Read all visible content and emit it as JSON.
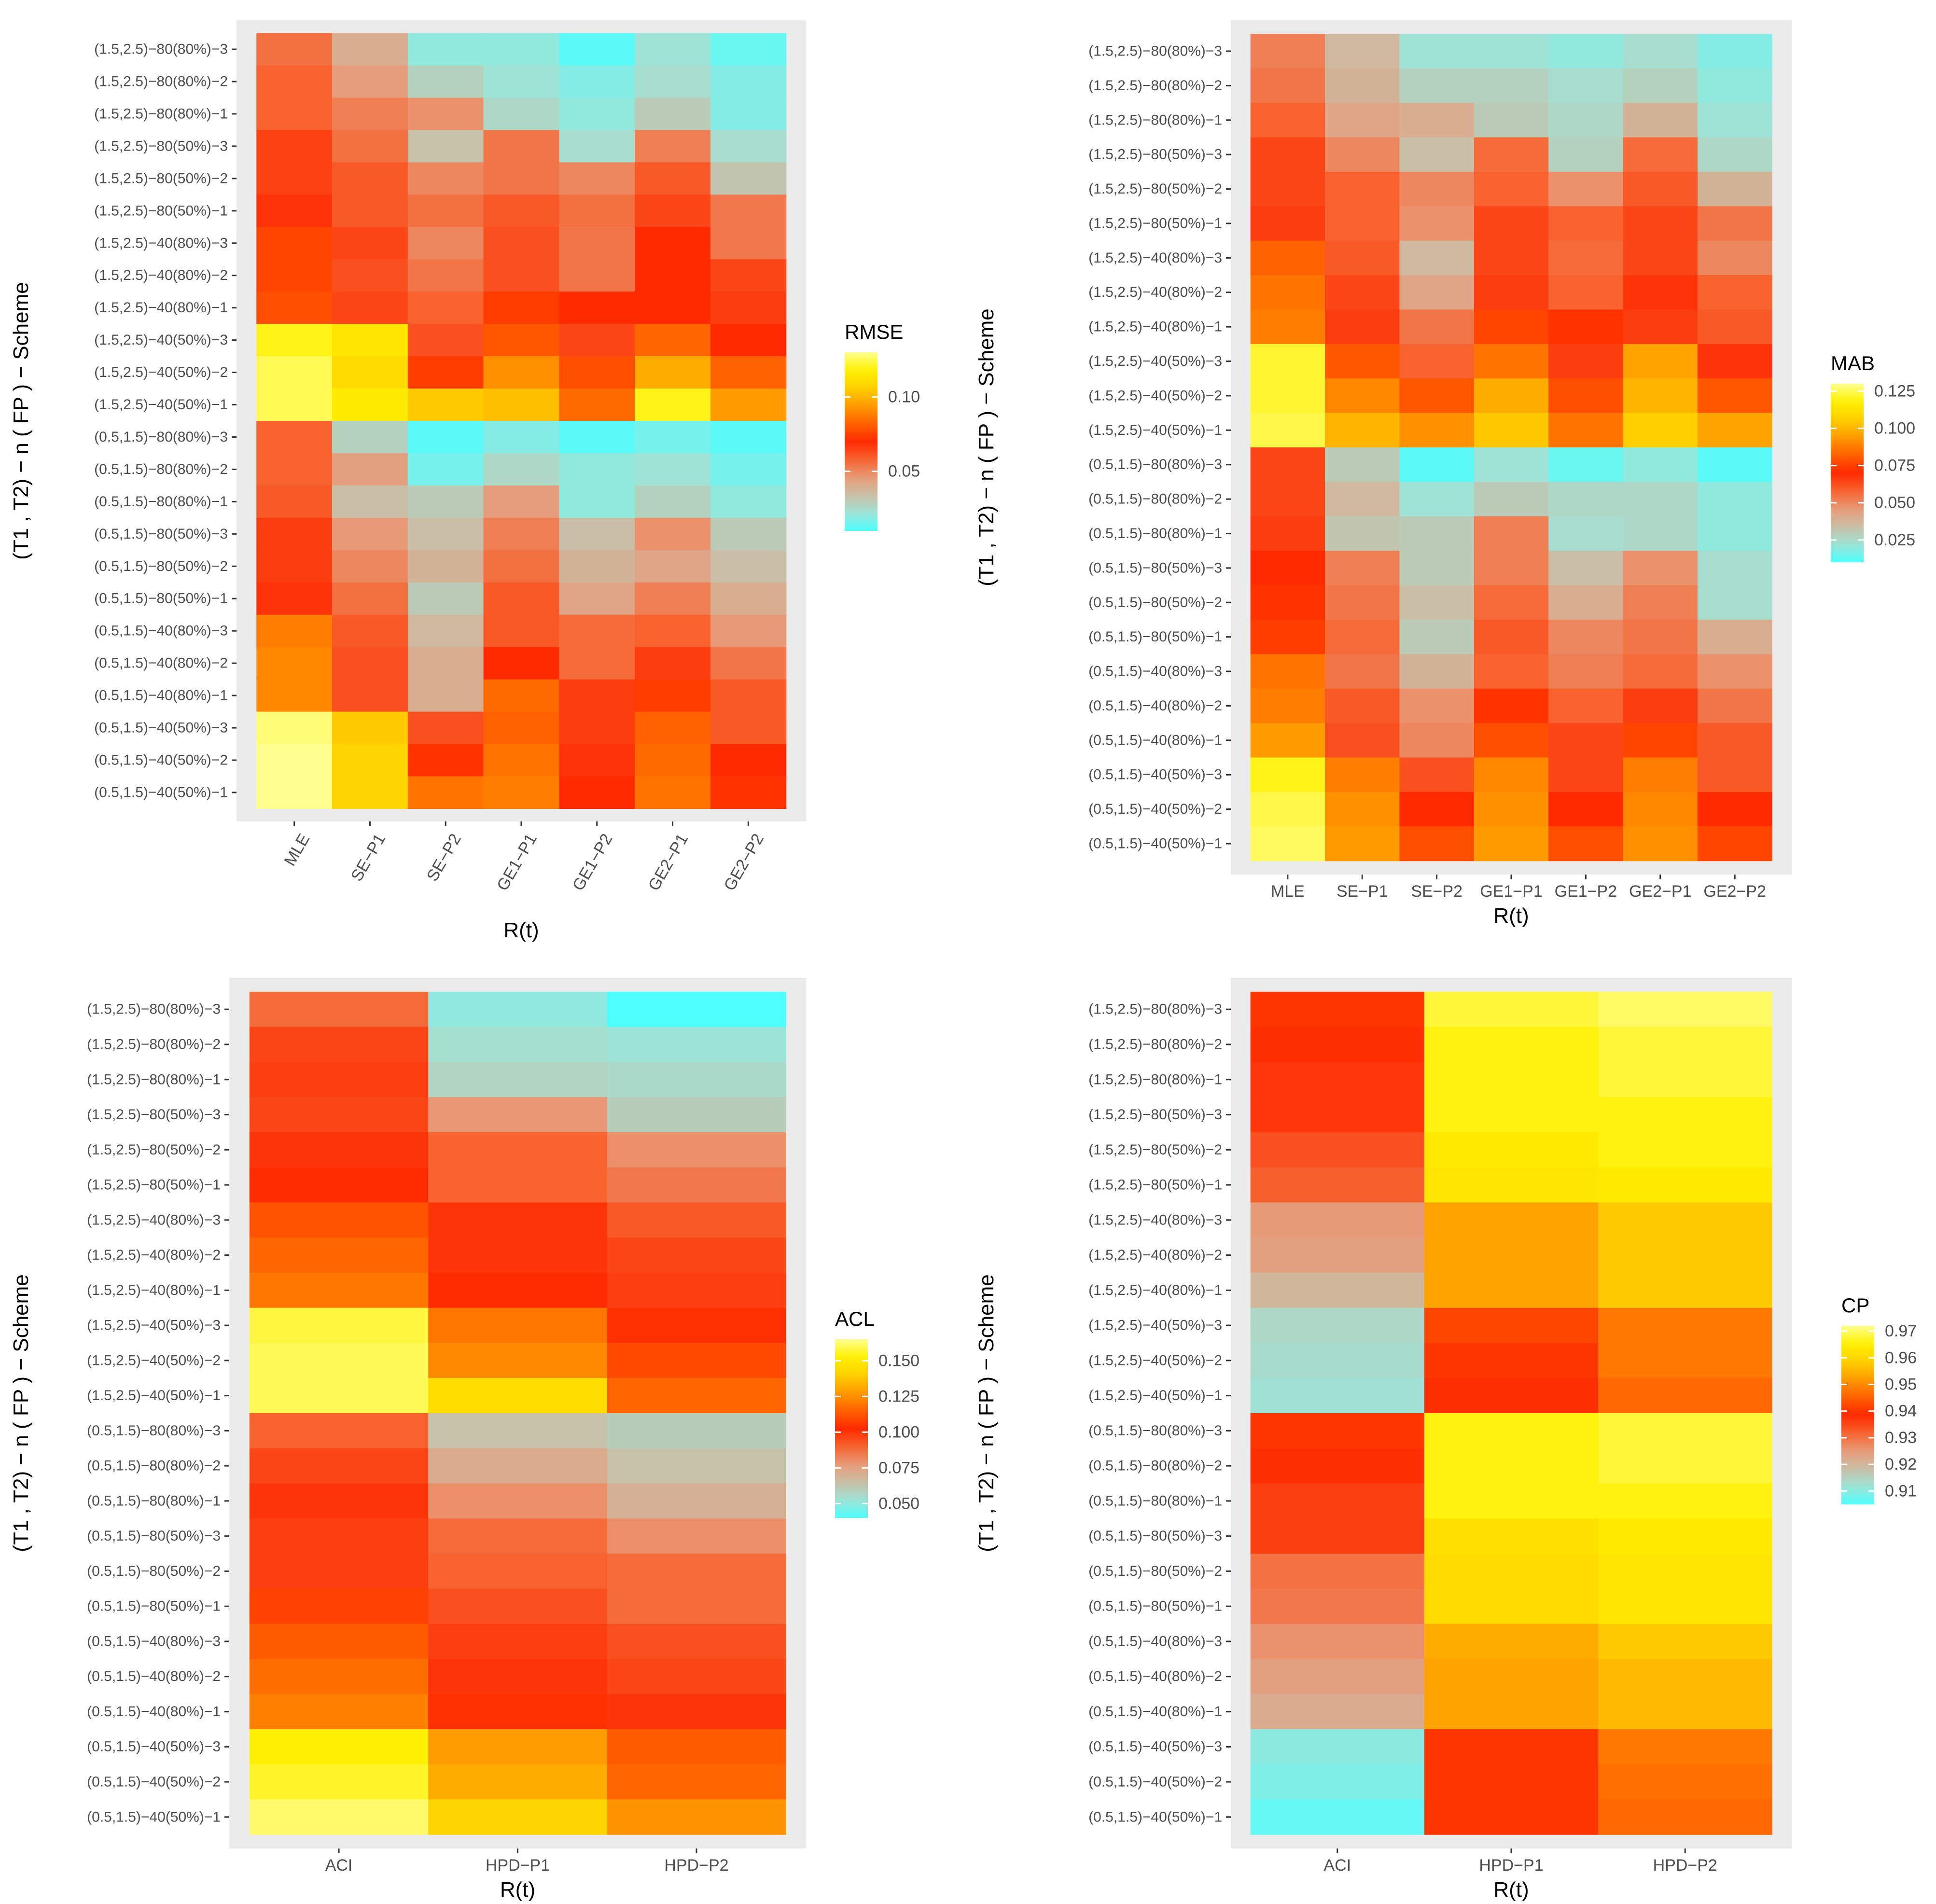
{
  "panels": [
    {
      "id": "rmse",
      "chart_data": {
        "type": "heatmap",
        "xlabel": "R(t)",
        "ylabel": "(T1 , T2) − n ( FP ) − Scheme",
        "x_tick_rotation": 60,
        "columns": [
          "MLE",
          "SE−P1",
          "SE−P2",
          "GE1−P1",
          "GE1−P2",
          "GE2−P1",
          "GE2−P2"
        ],
        "rows": [
          "(1.5,2.5)−80(80%)−3",
          "(1.5,2.5)−80(80%)−2",
          "(1.5,2.5)−80(80%)−1",
          "(1.5,2.5)−80(50%)−3",
          "(1.5,2.5)−80(50%)−2",
          "(1.5,2.5)−80(50%)−1",
          "(1.5,2.5)−40(80%)−3",
          "(1.5,2.5)−40(80%)−2",
          "(1.5,2.5)−40(80%)−1",
          "(1.5,2.5)−40(50%)−3",
          "(1.5,2.5)−40(50%)−2",
          "(1.5,2.5)−40(50%)−1",
          "(0.5,1.5)−80(80%)−3",
          "(0.5,1.5)−80(80%)−2",
          "(0.5,1.5)−80(80%)−1",
          "(0.5,1.5)−80(50%)−3",
          "(0.5,1.5)−80(50%)−2",
          "(0.5,1.5)−80(50%)−1",
          "(0.5,1.5)−40(80%)−3",
          "(0.5,1.5)−40(80%)−2",
          "(0.5,1.5)−40(80%)−1",
          "(0.5,1.5)−40(50%)−3",
          "(0.5,1.5)−40(50%)−2",
          "(0.5,1.5)−40(50%)−1"
        ],
        "values": [
          [
            0.055,
            0.04,
            0.02,
            0.02,
            0.012,
            0.022,
            0.014
          ],
          [
            0.058,
            0.045,
            0.028,
            0.022,
            0.018,
            0.024,
            0.018
          ],
          [
            0.058,
            0.052,
            0.048,
            0.026,
            0.02,
            0.03,
            0.018
          ],
          [
            0.065,
            0.055,
            0.033,
            0.054,
            0.024,
            0.052,
            0.024
          ],
          [
            0.065,
            0.06,
            0.05,
            0.054,
            0.05,
            0.06,
            0.032
          ],
          [
            0.068,
            0.06,
            0.055,
            0.06,
            0.055,
            0.064,
            0.053
          ],
          [
            0.076,
            0.064,
            0.05,
            0.062,
            0.054,
            0.07,
            0.053
          ],
          [
            0.076,
            0.062,
            0.054,
            0.062,
            0.054,
            0.07,
            0.064
          ],
          [
            0.078,
            0.064,
            0.058,
            0.074,
            0.07,
            0.07,
            0.066
          ],
          [
            0.12,
            0.114,
            0.062,
            0.08,
            0.064,
            0.083,
            0.07
          ],
          [
            0.125,
            0.11,
            0.074,
            0.092,
            0.078,
            0.098,
            0.082
          ],
          [
            0.125,
            0.116,
            0.105,
            0.102,
            0.084,
            0.12,
            0.094
          ],
          [
            0.058,
            0.028,
            0.012,
            0.018,
            0.012,
            0.016,
            0.012
          ],
          [
            0.058,
            0.044,
            0.016,
            0.026,
            0.02,
            0.022,
            0.016
          ],
          [
            0.06,
            0.034,
            0.03,
            0.045,
            0.02,
            0.028,
            0.02
          ],
          [
            0.066,
            0.046,
            0.034,
            0.052,
            0.034,
            0.048,
            0.03
          ],
          [
            0.066,
            0.05,
            0.038,
            0.055,
            0.038,
            0.042,
            0.034
          ],
          [
            0.068,
            0.055,
            0.03,
            0.06,
            0.042,
            0.052,
            0.04
          ],
          [
            0.088,
            0.06,
            0.036,
            0.06,
            0.056,
            0.058,
            0.046
          ],
          [
            0.09,
            0.062,
            0.04,
            0.07,
            0.056,
            0.066,
            0.054
          ],
          [
            0.09,
            0.062,
            0.04,
            0.084,
            0.066,
            0.074,
            0.06
          ],
          [
            0.128,
            0.105,
            0.062,
            0.082,
            0.066,
            0.082,
            0.06
          ],
          [
            0.13,
            0.108,
            0.072,
            0.086,
            0.068,
            0.084,
            0.07
          ],
          [
            0.13,
            0.108,
            0.086,
            0.088,
            0.07,
            0.086,
            0.072
          ]
        ],
        "legend": {
          "title": "RMSE",
          "min": 0.01,
          "max": 0.13,
          "ticks": [
            0.05,
            0.1
          ],
          "tick_labels": [
            "0.05",
            "0.10"
          ],
          "placement": "right"
        }
      }
    },
    {
      "id": "mab",
      "chart_data": {
        "type": "heatmap",
        "xlabel": "R(t)",
        "ylabel": "(T1 , T2) − n ( FP ) − Scheme",
        "x_tick_rotation": 0,
        "columns": [
          "MLE",
          "SE−P1",
          "SE−P2",
          "GE1−P1",
          "GE1−P2",
          "GE2−P1",
          "GE2−P2"
        ],
        "rows": [
          "(1.5,2.5)−80(80%)−3",
          "(1.5,2.5)−80(80%)−2",
          "(1.5,2.5)−80(80%)−1",
          "(1.5,2.5)−80(50%)−3",
          "(1.5,2.5)−80(50%)−2",
          "(1.5,2.5)−80(50%)−1",
          "(1.5,2.5)−40(80%)−3",
          "(1.5,2.5)−40(80%)−2",
          "(1.5,2.5)−40(80%)−1",
          "(1.5,2.5)−40(50%)−3",
          "(1.5,2.5)−40(50%)−2",
          "(1.5,2.5)−40(50%)−1",
          "(0.5,1.5)−80(80%)−3",
          "(0.5,1.5)−80(80%)−2",
          "(0.5,1.5)−80(80%)−1",
          "(0.5,1.5)−80(50%)−3",
          "(0.5,1.5)−80(50%)−2",
          "(0.5,1.5)−80(50%)−1",
          "(0.5,1.5)−40(80%)−3",
          "(0.5,1.5)−40(80%)−2",
          "(0.5,1.5)−40(80%)−1",
          "(0.5,1.5)−40(50%)−3",
          "(0.5,1.5)−40(50%)−2",
          "(0.5,1.5)−40(50%)−1"
        ],
        "values": [
          [
            0.052,
            0.036,
            0.022,
            0.022,
            0.02,
            0.024,
            0.018
          ],
          [
            0.054,
            0.038,
            0.028,
            0.028,
            0.024,
            0.028,
            0.02
          ],
          [
            0.058,
            0.042,
            0.04,
            0.03,
            0.026,
            0.038,
            0.022
          ],
          [
            0.064,
            0.05,
            0.034,
            0.056,
            0.028,
            0.056,
            0.026
          ],
          [
            0.064,
            0.058,
            0.05,
            0.058,
            0.048,
            0.06,
            0.038
          ],
          [
            0.066,
            0.058,
            0.048,
            0.064,
            0.058,
            0.064,
            0.054
          ],
          [
            0.082,
            0.06,
            0.036,
            0.064,
            0.056,
            0.064,
            0.05
          ],
          [
            0.086,
            0.064,
            0.042,
            0.066,
            0.058,
            0.068,
            0.058
          ],
          [
            0.088,
            0.066,
            0.054,
            0.076,
            0.072,
            0.066,
            0.06
          ],
          [
            0.122,
            0.08,
            0.058,
            0.086,
            0.066,
            0.096,
            0.068
          ],
          [
            0.122,
            0.09,
            0.08,
            0.098,
            0.078,
            0.1,
            0.08
          ],
          [
            0.124,
            0.1,
            0.092,
            0.104,
            0.086,
            0.106,
            0.096
          ],
          [
            0.064,
            0.03,
            0.012,
            0.022,
            0.014,
            0.02,
            0.012
          ],
          [
            0.064,
            0.036,
            0.022,
            0.03,
            0.026,
            0.026,
            0.02
          ],
          [
            0.066,
            0.032,
            0.03,
            0.052,
            0.024,
            0.026,
            0.02
          ],
          [
            0.07,
            0.052,
            0.03,
            0.052,
            0.034,
            0.048,
            0.024
          ],
          [
            0.072,
            0.054,
            0.034,
            0.056,
            0.04,
            0.052,
            0.024
          ],
          [
            0.074,
            0.056,
            0.03,
            0.06,
            0.05,
            0.054,
            0.04
          ],
          [
            0.086,
            0.054,
            0.038,
            0.058,
            0.052,
            0.056,
            0.048
          ],
          [
            0.088,
            0.06,
            0.048,
            0.072,
            0.058,
            0.066,
            0.054
          ],
          [
            0.094,
            0.062,
            0.05,
            0.078,
            0.064,
            0.076,
            0.06
          ],
          [
            0.12,
            0.088,
            0.062,
            0.09,
            0.064,
            0.088,
            0.06
          ],
          [
            0.124,
            0.092,
            0.07,
            0.092,
            0.07,
            0.09,
            0.07
          ],
          [
            0.126,
            0.094,
            0.078,
            0.094,
            0.078,
            0.092,
            0.076
          ]
        ],
        "legend": {
          "title": "MAB",
          "min": 0.01,
          "max": 0.13,
          "ticks": [
            0.025,
            0.05,
            0.075,
            0.1,
            0.125
          ],
          "tick_labels": [
            "0.025",
            "0.050",
            "0.075",
            "0.100",
            "0.125"
          ],
          "placement": "right"
        }
      }
    },
    {
      "id": "acl",
      "chart_data": {
        "type": "heatmap",
        "xlabel": "R(t)",
        "ylabel": "(T1 , T2) − n ( FP ) − Scheme",
        "x_tick_rotation": 0,
        "columns": [
          "ACI",
          "HPD−P1",
          "HPD−P2"
        ],
        "rows": [
          "(1.5,2.5)−80(80%)−3",
          "(1.5,2.5)−80(80%)−2",
          "(1.5,2.5)−80(80%)−1",
          "(1.5,2.5)−80(50%)−3",
          "(1.5,2.5)−80(50%)−2",
          "(1.5,2.5)−80(50%)−1",
          "(1.5,2.5)−40(80%)−3",
          "(1.5,2.5)−40(80%)−2",
          "(1.5,2.5)−40(80%)−1",
          "(1.5,2.5)−40(50%)−3",
          "(1.5,2.5)−40(50%)−2",
          "(1.5,2.5)−40(50%)−1",
          "(0.5,1.5)−80(80%)−3",
          "(0.5,1.5)−80(80%)−2",
          "(0.5,1.5)−80(80%)−1",
          "(0.5,1.5)−80(50%)−3",
          "(0.5,1.5)−80(50%)−2",
          "(0.5,1.5)−80(50%)−1",
          "(0.5,1.5)−40(80%)−3",
          "(0.5,1.5)−40(80%)−2",
          "(0.5,1.5)−40(80%)−1",
          "(0.5,1.5)−40(50%)−3",
          "(0.5,1.5)−40(50%)−2",
          "(0.5,1.5)−40(50%)−1"
        ],
        "values": [
          [
            0.088,
            0.05,
            0.04
          ],
          [
            0.096,
            0.054,
            0.052
          ],
          [
            0.098,
            0.058,
            0.056
          ],
          [
            0.096,
            0.078,
            0.06
          ],
          [
            0.1,
            0.09,
            0.08
          ],
          [
            0.102,
            0.09,
            0.085
          ],
          [
            0.112,
            0.1,
            0.092
          ],
          [
            0.116,
            0.1,
            0.096
          ],
          [
            0.12,
            0.102,
            0.098
          ],
          [
            0.158,
            0.12,
            0.104
          ],
          [
            0.16,
            0.124,
            0.11
          ],
          [
            0.16,
            0.146,
            0.116
          ],
          [
            0.09,
            0.064,
            0.06
          ],
          [
            0.096,
            0.072,
            0.064
          ],
          [
            0.1,
            0.08,
            0.07
          ],
          [
            0.098,
            0.088,
            0.08
          ],
          [
            0.098,
            0.09,
            0.088
          ],
          [
            0.108,
            0.094,
            0.088
          ],
          [
            0.114,
            0.098,
            0.094
          ],
          [
            0.118,
            0.1,
            0.096
          ],
          [
            0.122,
            0.104,
            0.1
          ],
          [
            0.152,
            0.128,
            0.114
          ],
          [
            0.156,
            0.132,
            0.116
          ],
          [
            0.162,
            0.142,
            0.126
          ]
        ],
        "legend": {
          "title": "ACL",
          "min": 0.04,
          "max": 0.165,
          "ticks": [
            0.05,
            0.075,
            0.1,
            0.125,
            0.15
          ],
          "tick_labels": [
            "0.050",
            "0.075",
            "0.100",
            "0.125",
            "0.150"
          ],
          "placement": "right"
        }
      }
    },
    {
      "id": "cp",
      "chart_data": {
        "type": "heatmap",
        "xlabel": "R(t)",
        "ylabel": "(T1 , T2) − n ( FP ) − Scheme",
        "x_tick_rotation": 0,
        "columns": [
          "ACI",
          "HPD−P1",
          "HPD−P2"
        ],
        "rows": [
          "(1.5,2.5)−80(80%)−3",
          "(1.5,2.5)−80(80%)−2",
          "(1.5,2.5)−80(80%)−1",
          "(1.5,2.5)−80(50%)−3",
          "(1.5,2.5)−80(50%)−2",
          "(1.5,2.5)−80(50%)−1",
          "(1.5,2.5)−40(80%)−3",
          "(1.5,2.5)−40(80%)−2",
          "(1.5,2.5)−40(80%)−1",
          "(1.5,2.5)−40(50%)−3",
          "(1.5,2.5)−40(50%)−2",
          "(1.5,2.5)−40(50%)−1",
          "(0.5,1.5)−80(80%)−3",
          "(0.5,1.5)−80(80%)−2",
          "(0.5,1.5)−80(80%)−1",
          "(0.5,1.5)−80(50%)−3",
          "(0.5,1.5)−80(50%)−2",
          "(0.5,1.5)−80(50%)−1",
          "(0.5,1.5)−40(80%)−3",
          "(0.5,1.5)−40(80%)−2",
          "(0.5,1.5)−40(80%)−1",
          "(0.5,1.5)−40(50%)−3",
          "(0.5,1.5)−40(50%)−2",
          "(0.5,1.5)−40(50%)−1"
        ],
        "values": [
          [
            0.94,
            0.968,
            0.97
          ],
          [
            0.938,
            0.966,
            0.968
          ],
          [
            0.937,
            0.966,
            0.968
          ],
          [
            0.937,
            0.966,
            0.966
          ],
          [
            0.934,
            0.964,
            0.966
          ],
          [
            0.932,
            0.963,
            0.964
          ],
          [
            0.925,
            0.953,
            0.958
          ],
          [
            0.924,
            0.953,
            0.958
          ],
          [
            0.92,
            0.953,
            0.958
          ],
          [
            0.914,
            0.942,
            0.948
          ],
          [
            0.913,
            0.94,
            0.948
          ],
          [
            0.912,
            0.938,
            0.946
          ],
          [
            0.94,
            0.966,
            0.968
          ],
          [
            0.938,
            0.966,
            0.968
          ],
          [
            0.936,
            0.966,
            0.966
          ],
          [
            0.936,
            0.962,
            0.964
          ],
          [
            0.93,
            0.961,
            0.963
          ],
          [
            0.929,
            0.961,
            0.963
          ],
          [
            0.926,
            0.954,
            0.958
          ],
          [
            0.924,
            0.953,
            0.956
          ],
          [
            0.922,
            0.953,
            0.956
          ],
          [
            0.91,
            0.94,
            0.948
          ],
          [
            0.909,
            0.94,
            0.947
          ],
          [
            0.907,
            0.94,
            0.946
          ]
        ],
        "legend": {
          "title": "CP",
          "min": 0.905,
          "max": 0.972,
          "ticks": [
            0.91,
            0.92,
            0.93,
            0.94,
            0.95,
            0.96,
            0.97
          ],
          "tick_labels": [
            "0.91",
            "0.92",
            "0.93",
            "0.94",
            "0.95",
            "0.96",
            "0.97"
          ],
          "placement": "right"
        }
      }
    }
  ],
  "colors": {
    "panel_background": "#ebebeb",
    "gradient": [
      "#4dffff",
      "#9fe3d6",
      "#c9bfa6",
      "#e89a78",
      "#f7622e",
      "#ff2a00",
      "#ff6000",
      "#ff9a00",
      "#ffd000",
      "#fff000",
      "#ffff90"
    ],
    "tick_text": "#4d4d4d",
    "title_text": "#000000"
  }
}
